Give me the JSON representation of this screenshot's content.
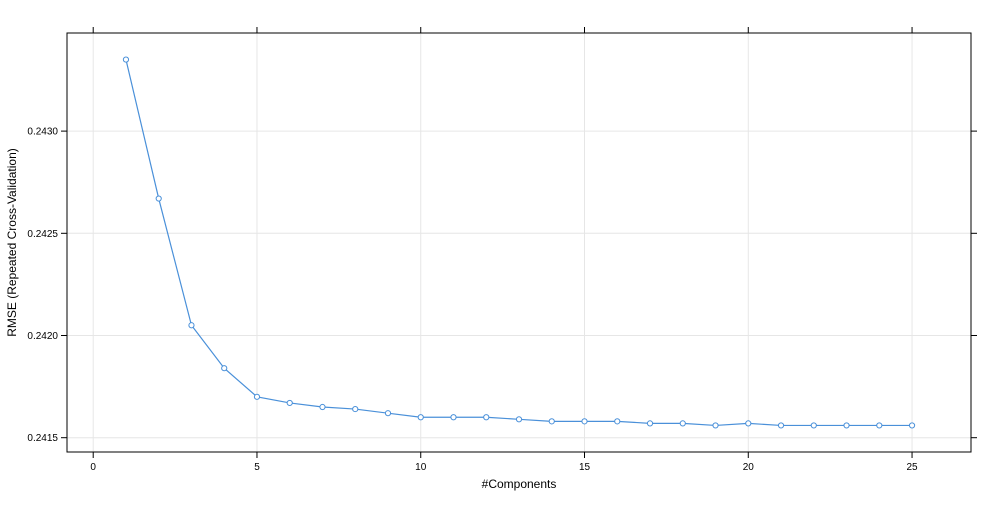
{
  "chart_data": {
    "type": "line",
    "title": "",
    "xlabel": "#Components",
    "ylabel": "RMSE (Repeated Cross-Validation)",
    "xlim": [
      -0.8,
      26.8
    ],
    "ylim": [
      0.24143,
      0.24348
    ],
    "xticks": [
      0,
      5,
      10,
      15,
      20,
      25
    ],
    "xtick_labels": [
      "0",
      "5",
      "10",
      "15",
      "20",
      "25"
    ],
    "yticks": [
      0.2415,
      0.242,
      0.2425,
      0.243
    ],
    "ytick_labels": [
      "0.2415",
      "0.2420",
      "0.2425",
      "0.2430"
    ],
    "grid": true,
    "series": [
      {
        "color": "#4a90d9",
        "marker": "circle-open",
        "x": [
          1,
          2,
          3,
          4,
          5,
          6,
          7,
          8,
          9,
          10,
          11,
          12,
          13,
          14,
          15,
          16,
          17,
          18,
          19,
          20,
          21,
          22,
          23,
          24,
          25
        ],
        "y": [
          0.24335,
          0.24267,
          0.24205,
          0.24184,
          0.2417,
          0.24167,
          0.24165,
          0.24164,
          0.24162,
          0.2416,
          0.2416,
          0.2416,
          0.24159,
          0.24158,
          0.24158,
          0.24158,
          0.24157,
          0.24157,
          0.24156,
          0.24157,
          0.24156,
          0.24156,
          0.24156,
          0.24156,
          0.24156
        ]
      }
    ]
  }
}
